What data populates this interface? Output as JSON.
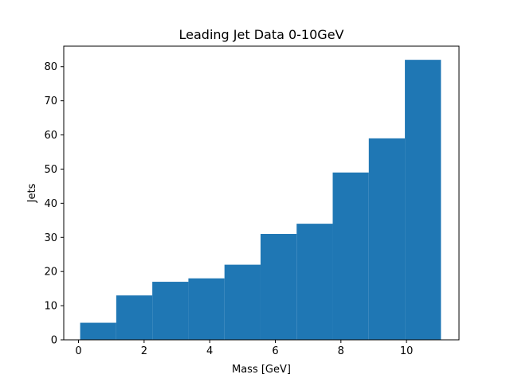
{
  "chart_data": {
    "type": "bar",
    "title": "Leading Jet Data 0-10GeV",
    "xlabel": "Mass [GeV]",
    "ylabel": "Jets",
    "xlim": [
      -0.45,
      11.6
    ],
    "ylim": [
      0,
      86
    ],
    "xticks": [
      0,
      2,
      4,
      6,
      8,
      10
    ],
    "yticks": [
      0,
      10,
      20,
      30,
      40,
      50,
      60,
      70,
      80
    ],
    "bins": [
      {
        "start": 0.05,
        "end": 1.15,
        "value": 5
      },
      {
        "start": 1.15,
        "end": 2.25,
        "value": 13
      },
      {
        "start": 2.25,
        "end": 3.35,
        "value": 17
      },
      {
        "start": 3.35,
        "end": 4.45,
        "value": 18
      },
      {
        "start": 4.45,
        "end": 5.55,
        "value": 22
      },
      {
        "start": 5.55,
        "end": 6.65,
        "value": 31
      },
      {
        "start": 6.65,
        "end": 7.75,
        "value": 34
      },
      {
        "start": 7.75,
        "end": 8.85,
        "value": 49
      },
      {
        "start": 8.85,
        "end": 9.95,
        "value": 59
      },
      {
        "start": 9.95,
        "end": 11.05,
        "value": 82
      }
    ],
    "bar_color": "#1f77b4",
    "grid": false,
    "legend": "none"
  }
}
